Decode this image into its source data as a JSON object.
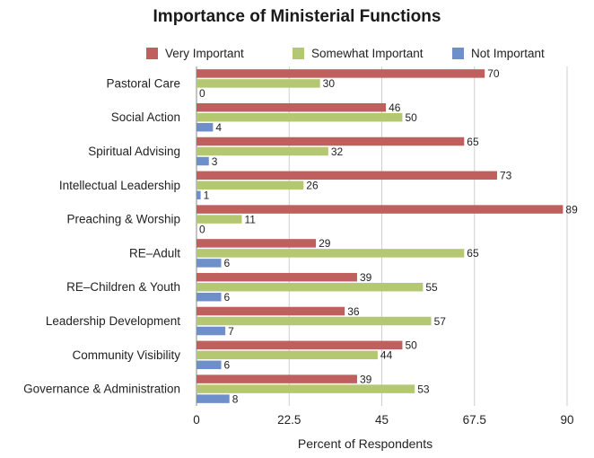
{
  "chart_data": {
    "type": "bar",
    "orientation": "horizontal",
    "title": "Importance of Ministerial Functions",
    "xlabel": "Percent of Respondents",
    "ylabel": "",
    "xlim": [
      0,
      90
    ],
    "x_ticks": [
      "0",
      "22.5",
      "45",
      "67.5",
      "90"
    ],
    "grid": "vertical",
    "legend_position": "top",
    "categories": [
      "Pastoral Care",
      "Social Action",
      "Spiritual Advising",
      "Intellectual Leadership",
      "Preaching & Worship",
      "RE–Adult",
      "RE–Children & Youth",
      "Leadership Development",
      "Community Visibility",
      "Governance & Administration"
    ],
    "series": [
      {
        "name": "Very Important",
        "color": "#c0605e",
        "values": [
          70,
          46,
          65,
          73,
          89,
          29,
          39,
          36,
          50,
          39
        ]
      },
      {
        "name": "Somewhat Important",
        "color": "#b4c872",
        "values": [
          30,
          50,
          32,
          26,
          11,
          65,
          55,
          57,
          44,
          53
        ]
      },
      {
        "name": "Not Important",
        "color": "#6f8fcb",
        "values": [
          0,
          4,
          3,
          1,
          0,
          6,
          6,
          7,
          6,
          8
        ]
      }
    ]
  }
}
